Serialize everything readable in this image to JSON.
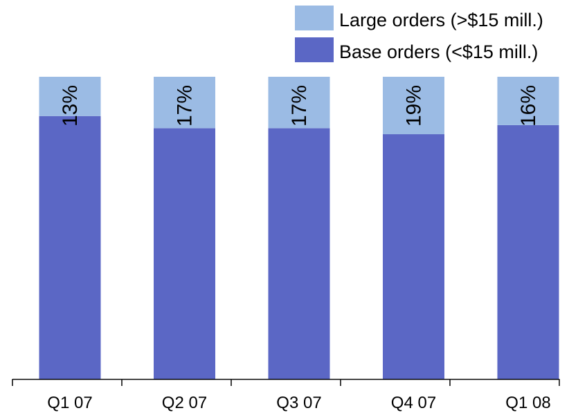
{
  "chart_data": {
    "type": "bar",
    "stacked": true,
    "normalized": true,
    "categories": [
      "Q1 07",
      "Q2 07",
      "Q3 07",
      "Q4 07",
      "Q1 08"
    ],
    "series": [
      {
        "name": "Base orders (<$15 mill.)",
        "values": [
          87,
          83,
          83,
          81,
          84
        ],
        "color": "#5b67c5"
      },
      {
        "name": "Large orders (>$15 mill.)",
        "values": [
          13,
          17,
          17,
          19,
          16
        ],
        "color": "#9bbbe4"
      }
    ],
    "data_labels": [
      "13%",
      "17%",
      "17%",
      "19%",
      "16%"
    ],
    "ylim": [
      0,
      100
    ],
    "grid": false,
    "legend_position": "top-right"
  }
}
